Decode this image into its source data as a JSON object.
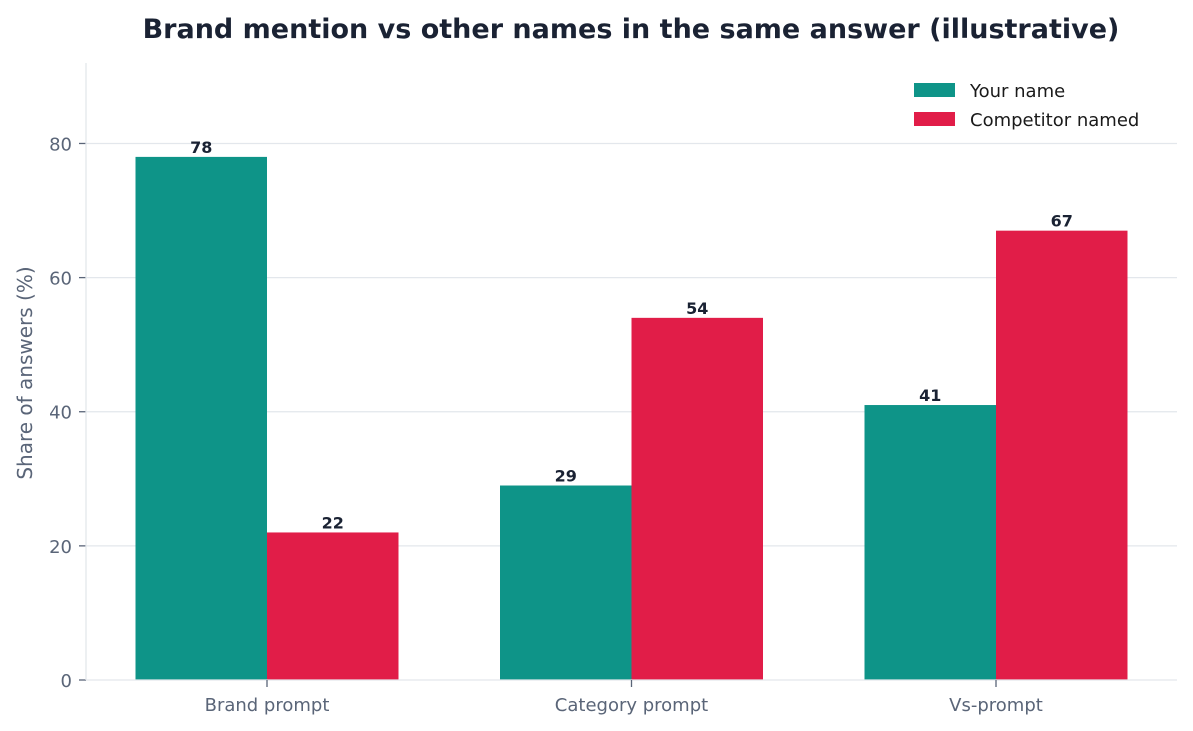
{
  "chart_data": {
    "type": "bar",
    "title": "Brand mention vs other names in the same answer (illustrative)",
    "xlabel": "",
    "ylabel": "Share of answers (%)",
    "categories": [
      "Brand prompt",
      "Category prompt",
      "Vs-prompt"
    ],
    "series": [
      {
        "name": "Your name",
        "values": [
          78,
          29,
          41
        ],
        "color": "#0e9488"
      },
      {
        "name": "Competitor named",
        "values": [
          22,
          54,
          67
        ],
        "color": "#e11d48"
      }
    ],
    "ylim": [
      0,
      92
    ],
    "yticks": [
      0,
      20,
      40,
      60,
      80
    ],
    "grid": "horizontal",
    "legend": "top-right"
  }
}
